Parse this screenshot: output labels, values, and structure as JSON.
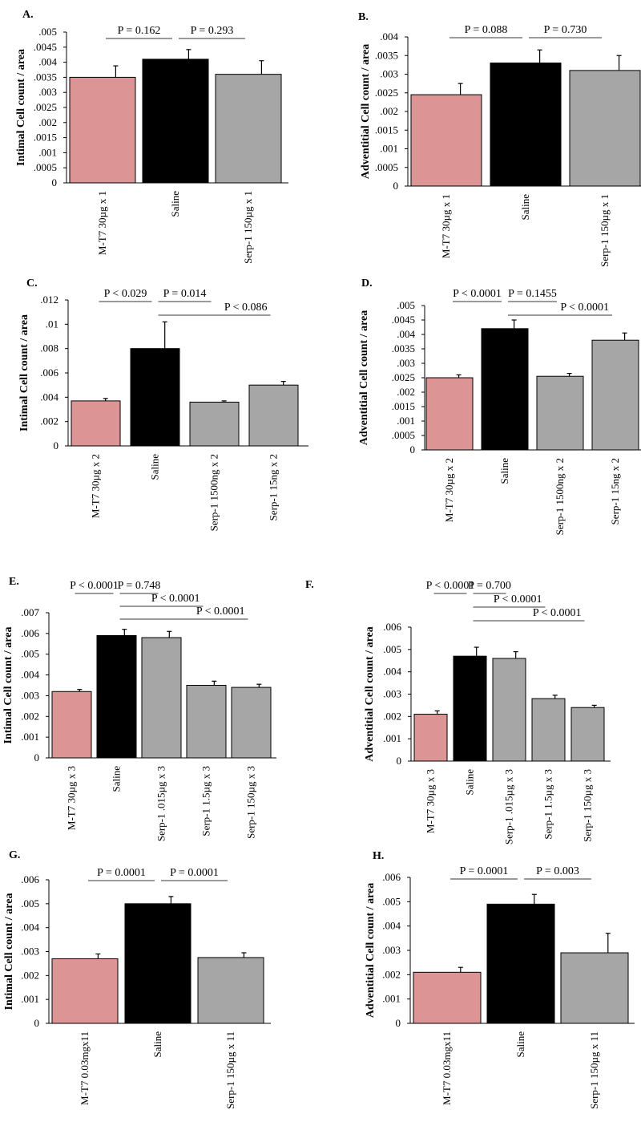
{
  "colors": {
    "mt7": "#dc9594",
    "saline": "#000000",
    "serp": "#a6a6a6",
    "axis": "#000000",
    "bracket": "#7a7a7a"
  },
  "chart_data": [
    {
      "type": "bar",
      "panel": "A.",
      "ylabel": "Intimal  Cell count / area",
      "ylim": [
        0,
        0.005
      ],
      "yticks": [
        0,
        0.0005,
        0.001,
        0.0015,
        0.002,
        0.0025,
        0.003,
        0.0035,
        0.004,
        0.0045,
        0.005
      ],
      "ytick_labels": [
        "0",
        ".0005",
        ".001",
        ".0015",
        ".002",
        ".0025",
        ".003",
        ".0035",
        ".004",
        ".0045",
        ".005"
      ],
      "categories": [
        "M-T7 30µg x 1",
        "Saline",
        "Serp-1 150µg x 1"
      ],
      "values": [
        0.0035,
        0.0041,
        0.0036
      ],
      "errors": [
        0.00038,
        0.00032,
        0.00045
      ],
      "colors": [
        "mt7",
        "saline",
        "serp"
      ],
      "comparisons": [
        {
          "label": "P = 0.162",
          "from": 0,
          "to": 1,
          "level": 0
        },
        {
          "label": "P = 0.293",
          "from": 1,
          "to": 2,
          "level": 0
        }
      ]
    },
    {
      "type": "bar",
      "panel": "B.",
      "ylabel": "Adventitial Cell count / area",
      "ylim": [
        0,
        0.004
      ],
      "yticks": [
        0,
        0.0005,
        0.001,
        0.0015,
        0.002,
        0.0025,
        0.003,
        0.0035,
        0.004
      ],
      "ytick_labels": [
        "0",
        ".0005",
        ".001",
        ".0015",
        ".002",
        ".0025",
        ".003",
        ".0035",
        ".004"
      ],
      "categories": [
        "M-T7 30µg x 1",
        "Saline",
        "Serp-1 150µg  x 1"
      ],
      "values": [
        0.00245,
        0.0033,
        0.0031
      ],
      "errors": [
        0.0003,
        0.00035,
        0.0004
      ],
      "colors": [
        "mt7",
        "saline",
        "serp"
      ],
      "comparisons": [
        {
          "label": "P = 0.088",
          "from": 0,
          "to": 1,
          "level": 0
        },
        {
          "label": "P = 0.730",
          "from": 1,
          "to": 2,
          "level": 0
        }
      ]
    },
    {
      "type": "bar",
      "panel": "C.",
      "ylabel": "Intimal  Cell count / area",
      "ylim": [
        0,
        0.012
      ],
      "yticks": [
        0,
        0.002,
        0.004,
        0.006,
        0.008,
        0.01,
        0.012
      ],
      "ytick_labels": [
        "0",
        ".002",
        ".004",
        ".006",
        ".008",
        ".01",
        ".012"
      ],
      "categories": [
        "M-T7 30µg x 2",
        "Saline",
        "Serp-1 1500ng x 2",
        "Serp-1 15ng x 2"
      ],
      "values": [
        0.0037,
        0.008,
        0.0036,
        0.005
      ],
      "errors": [
        0.0002,
        0.0022,
        0.0001,
        0.0003
      ],
      "colors": [
        "mt7",
        "saline",
        "serp",
        "serp"
      ],
      "comparisons": [
        {
          "label": "P <  0.029",
          "from": 0,
          "to": 1,
          "level": 0
        },
        {
          "label": "P = 0.014",
          "from": 1,
          "to": 2,
          "level": 0
        },
        {
          "label": "P <  0.086",
          "from": 1,
          "to": 3,
          "level": 1
        }
      ]
    },
    {
      "type": "bar",
      "panel": "D.",
      "ylabel": "Adventitial Cell count / area",
      "ylim": [
        0,
        0.005
      ],
      "yticks": [
        0,
        0.0005,
        0.001,
        0.0015,
        0.002,
        0.0025,
        0.003,
        0.0035,
        0.004,
        0.0045,
        0.005
      ],
      "ytick_labels": [
        "0",
        ".0005",
        ".001",
        ".0015",
        ".002",
        ".0025",
        ".003",
        ".0035",
        ".004",
        ".0045",
        ".005"
      ],
      "categories": [
        "M-T7 30µg x 2",
        "Saline",
        "Serp-1 1500ng x 2",
        "Serp-1 15ng x 2"
      ],
      "values": [
        0.0025,
        0.0042,
        0.00255,
        0.0038
      ],
      "errors": [
        0.0001,
        0.0003,
        0.0001,
        0.00025
      ],
      "colors": [
        "mt7",
        "saline",
        "serp",
        "serp"
      ],
      "comparisons": [
        {
          "label": "P <  0.0001",
          "from": 0,
          "to": 1,
          "level": 0
        },
        {
          "label": "P = 0.1455",
          "from": 1,
          "to": 2,
          "level": 0
        },
        {
          "label": "P <  0.0001",
          "from": 1,
          "to": 3,
          "level": 1
        }
      ]
    },
    {
      "type": "bar",
      "panel": "E.",
      "ylabel": "Intimal  Cell count / area",
      "ylim": [
        0,
        0.007
      ],
      "yticks": [
        0,
        0.001,
        0.002,
        0.003,
        0.004,
        0.005,
        0.006,
        0.007
      ],
      "ytick_labels": [
        "0",
        ".001",
        ".002",
        ".003",
        ".004",
        ".005",
        ".006",
        ".007"
      ],
      "categories": [
        "M-T7 30µg x 3",
        "Saline",
        "Serp-1 .015µg x 3",
        "Serp-1 1.5µg x 3",
        "Serp-1 150µg x 3"
      ],
      "values": [
        0.0032,
        0.0059,
        0.0058,
        0.0035,
        0.0034
      ],
      "errors": [
        0.0001,
        0.0003,
        0.0003,
        0.0002,
        0.00015
      ],
      "colors": [
        "mt7",
        "saline",
        "serp",
        "serp",
        "serp"
      ],
      "comparisons": [
        {
          "label": "P < 0.0001",
          "from": 0,
          "to": 1,
          "level": 0
        },
        {
          "label": "P = 0.748",
          "from": 1,
          "to": 2,
          "level": 0
        },
        {
          "label": "P < 0.0001",
          "from": 1,
          "to": 3,
          "level": 1
        },
        {
          "label": "P < 0.0001",
          "from": 1,
          "to": 4,
          "level": 2
        }
      ]
    },
    {
      "type": "bar",
      "panel": "F.",
      "ylabel": "Adventitial Cell count / area",
      "ylim": [
        0,
        0.006
      ],
      "yticks": [
        0,
        0.001,
        0.002,
        0.003,
        0.004,
        0.005,
        0.006
      ],
      "ytick_labels": [
        "0",
        ".001",
        ".002",
        ".003",
        ".004",
        ".005",
        ".006"
      ],
      "categories": [
        "M-T7 30µg x 3",
        "Saline",
        "Serp-1 .015µg x 3",
        "Serp-1 1.5µg x 3",
        "Serp-1 150µg x 3"
      ],
      "values": [
        0.0021,
        0.0047,
        0.0046,
        0.0028,
        0.0024
      ],
      "errors": [
        0.00015,
        0.0004,
        0.0003,
        0.00015,
        0.0001
      ],
      "colors": [
        "mt7",
        "saline",
        "serp",
        "serp",
        "serp"
      ],
      "comparisons": [
        {
          "label": "P < 0.0001",
          "from": 0,
          "to": 1,
          "level": 0
        },
        {
          "label": "P = 0.700",
          "from": 1,
          "to": 2,
          "level": 0
        },
        {
          "label": "P < 0.0001",
          "from": 1,
          "to": 3,
          "level": 1
        },
        {
          "label": "P < 0.0001",
          "from": 1,
          "to": 4,
          "level": 2
        }
      ]
    },
    {
      "type": "bar",
      "panel": "G.",
      "ylabel": "Intimal  Cell count / area",
      "ylim": [
        0,
        0.006
      ],
      "yticks": [
        0,
        0.001,
        0.002,
        0.003,
        0.004,
        0.005,
        0.006
      ],
      "ytick_labels": [
        "0",
        ".001",
        ".002",
        ".003",
        ".004",
        ".005",
        ".006"
      ],
      "categories": [
        "M-T7 0.03mgx11",
        "Saline",
        "Serp-1 150µg x 11"
      ],
      "values": [
        0.0027,
        0.005,
        0.00275
      ],
      "errors": [
        0.0002,
        0.0003,
        0.0002
      ],
      "colors": [
        "mt7",
        "saline",
        "serp"
      ],
      "comparisons": [
        {
          "label": "P = 0.0001",
          "from": 0,
          "to": 1,
          "level": 0
        },
        {
          "label": "P = 0.0001",
          "from": 1,
          "to": 2,
          "level": 0
        }
      ]
    },
    {
      "type": "bar",
      "panel": "H.",
      "ylabel": "Adventitial Cell count / area",
      "ylim": [
        0,
        0.006
      ],
      "yticks": [
        0,
        0.001,
        0.002,
        0.003,
        0.004,
        0.005,
        0.006
      ],
      "ytick_labels": [
        "0",
        ".001",
        ".002",
        ".003",
        ".004",
        ".005",
        ".006"
      ],
      "categories": [
        "M-T7 0.03mgx11",
        "Saline",
        "Serp-1 150µg x 11"
      ],
      "values": [
        0.0021,
        0.0049,
        0.0029
      ],
      "errors": [
        0.0002,
        0.0004,
        0.0008
      ],
      "colors": [
        "mt7",
        "saline",
        "serp"
      ],
      "comparisons": [
        {
          "label": "P = 0.0001",
          "from": 0,
          "to": 1,
          "level": 0
        },
        {
          "label": "P = 0.003",
          "from": 1,
          "to": 2,
          "level": 0
        }
      ]
    }
  ]
}
